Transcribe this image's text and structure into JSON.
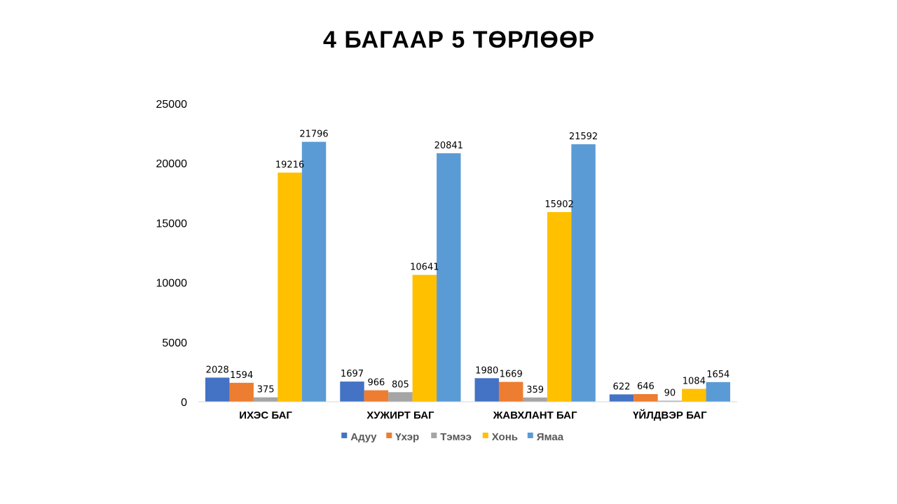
{
  "title": "4 БАГААР 5 ТӨРЛӨӨР",
  "chart_data": {
    "type": "bar",
    "title": "4 БАГААР 5 ТӨРЛӨӨР",
    "categories": [
      "ИХЭС БАГ",
      "ХУЖИРТ БАГ",
      "ЖАВХЛАНТ БАГ",
      "ҮЙЛДВЭР БАГ"
    ],
    "series": [
      {
        "name": "Адуу",
        "color": "#4472C4",
        "values": [
          2028,
          1697,
          1980,
          622
        ]
      },
      {
        "name": "Үхэр",
        "color": "#ED7D31",
        "values": [
          1594,
          966,
          1669,
          646
        ]
      },
      {
        "name": "Тэмээ",
        "color": "#A5A5A5",
        "values": [
          375,
          805,
          359,
          90
        ]
      },
      {
        "name": "Хонь",
        "color": "#FFC000",
        "values": [
          19216,
          10641,
          15902,
          1084
        ]
      },
      {
        "name": "Ямаа",
        "color": "#5B9BD5",
        "values": [
          21796,
          20841,
          21592,
          1654
        ]
      }
    ],
    "xlabel": "",
    "ylabel": "",
    "ylim": [
      0,
      25000
    ],
    "yticks": [
      0,
      5000,
      10000,
      15000,
      20000,
      25000
    ],
    "grid": false,
    "legend_position": "bottom",
    "data_labels": true
  }
}
